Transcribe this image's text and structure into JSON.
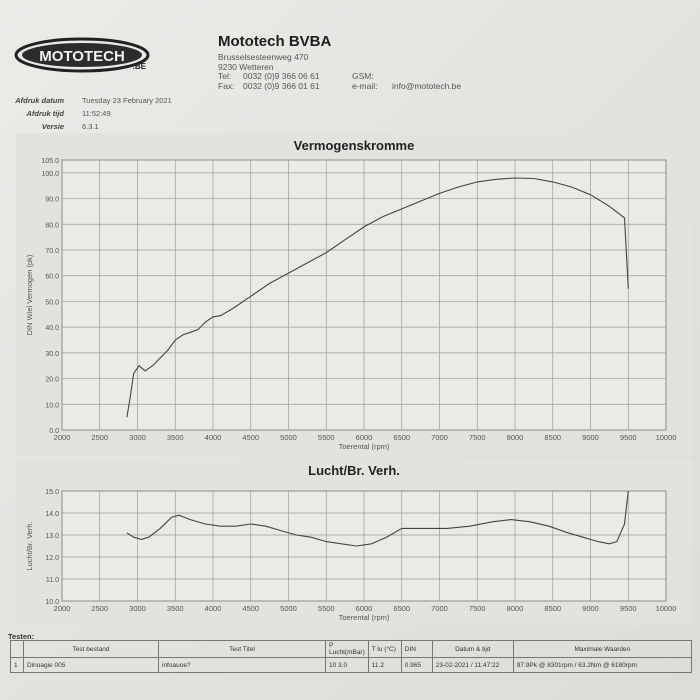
{
  "header": {
    "logo_text": "MOTOTECH",
    "logo_suffix": ".BE",
    "company": "Mototech BVBA",
    "address1": "Brusselsesteenweg 470",
    "address2": "9230 Wetteren",
    "tel_label": "Tel:",
    "tel_value": "0032 (0)9 366 06 61",
    "fax_label": "Fax:",
    "fax_value": "0032 (0)9 366 01 61",
    "gsm_label": "GSM:",
    "email_label": "e-mail:",
    "email_value": "info@mototech.be"
  },
  "meta": {
    "date_label": "Afdruk datum",
    "date_value": "Tuesday 23 February 2021",
    "time_label": "Afdruk tijd",
    "time_value": "11:52:49",
    "version_label": "Versie",
    "version_value": "6.3.1"
  },
  "chart_data": [
    {
      "type": "line",
      "title": "Vermogenskromme",
      "xlabel": "Toerental (rpm)",
      "ylabel": "DIN Wiel Vermogen (pk)",
      "xlim": [
        2000,
        10000
      ],
      "ylim": [
        0,
        105
      ],
      "x_ticks": [
        "2000",
        "2500",
        "3000",
        "3500",
        "4000",
        "4500",
        "5000",
        "5500",
        "6000",
        "6500",
        "7000",
        "7500",
        "8000",
        "8500",
        "9000",
        "9500",
        "10000"
      ],
      "y_ticks": [
        "0.0",
        "10.0",
        "20.0",
        "30.0",
        "40.0",
        "50.0",
        "60.0",
        "70.0",
        "80.0",
        "90.0",
        "100.0",
        "105.0"
      ],
      "grid": true,
      "x": [
        2860,
        2900,
        2950,
        3020,
        3100,
        3200,
        3300,
        3400,
        3500,
        3600,
        3700,
        3800,
        3900,
        4000,
        4100,
        4250,
        4500,
        4750,
        5000,
        5250,
        5500,
        5750,
        6000,
        6250,
        6500,
        6750,
        7000,
        7250,
        7500,
        7750,
        8000,
        8250,
        8500,
        8750,
        9000,
        9250,
        9450,
        9500
      ],
      "y": [
        5.0,
        12.0,
        22.0,
        25.0,
        23.0,
        25.0,
        28.0,
        31.0,
        35.0,
        37.0,
        38.0,
        39.0,
        42.0,
        44.0,
        44.5,
        47.0,
        52.0,
        57.0,
        61.0,
        65.0,
        69.0,
        74.0,
        79.0,
        83.0,
        86.0,
        89.0,
        92.0,
        94.5,
        96.5,
        97.5,
        98.0,
        97.8,
        96.5,
        94.5,
        91.5,
        87.0,
        82.5,
        55.0
      ]
    },
    {
      "type": "line",
      "title": "Lucht/Br. Verh.",
      "xlabel": "Toerental (rpm)",
      "ylabel": "Lucht/Br. Verh.",
      "xlim": [
        2000,
        10000
      ],
      "ylim": [
        10,
        15
      ],
      "x_ticks": [
        "2000",
        "2500",
        "3000",
        "3500",
        "4000",
        "4500",
        "5000",
        "5500",
        "6000",
        "6500",
        "7000",
        "7500",
        "8000",
        "8500",
        "9000",
        "9500",
        "10000"
      ],
      "y_ticks": [
        "10.0",
        "11.0",
        "12.0",
        "13.0",
        "14.0",
        "15.0"
      ],
      "grid": true,
      "x": [
        2860,
        2950,
        3050,
        3150,
        3300,
        3450,
        3550,
        3700,
        3900,
        4100,
        4300,
        4500,
        4700,
        4900,
        5100,
        5300,
        5500,
        5700,
        5900,
        6100,
        6300,
        6500,
        6800,
        7100,
        7400,
        7700,
        7950,
        8200,
        8450,
        8700,
        8900,
        9100,
        9250,
        9350,
        9450,
        9500
      ],
      "y": [
        13.1,
        12.9,
        12.8,
        12.9,
        13.3,
        13.8,
        13.9,
        13.7,
        13.5,
        13.4,
        13.4,
        13.5,
        13.4,
        13.2,
        13.0,
        12.9,
        12.7,
        12.6,
        12.5,
        12.6,
        12.9,
        13.3,
        13.3,
        13.3,
        13.4,
        13.6,
        13.7,
        13.6,
        13.4,
        13.1,
        12.9,
        12.7,
        12.6,
        12.7,
        13.5,
        15.0
      ]
    }
  ],
  "table": {
    "section_label": "Testen:",
    "headers": [
      "",
      "Test bestand",
      "Test Titel",
      "P Lucht(mBar)",
      "T lu (°C)",
      "DIN",
      "Datum & tijd",
      "Maximale Waarden"
    ],
    "row": [
      "1",
      "Dinoagie 005",
      "infoauoe?",
      "10 3.0",
      "11.2",
      "0.965",
      "23-02-2021 / 11:47:22",
      "97.9Pk @ 8301rpm / 63.2Nm @ 6180rpm"
    ]
  },
  "colors": {
    "line": "#444444",
    "grid": "#9a9a9a",
    "panel": "#e3e2df"
  }
}
